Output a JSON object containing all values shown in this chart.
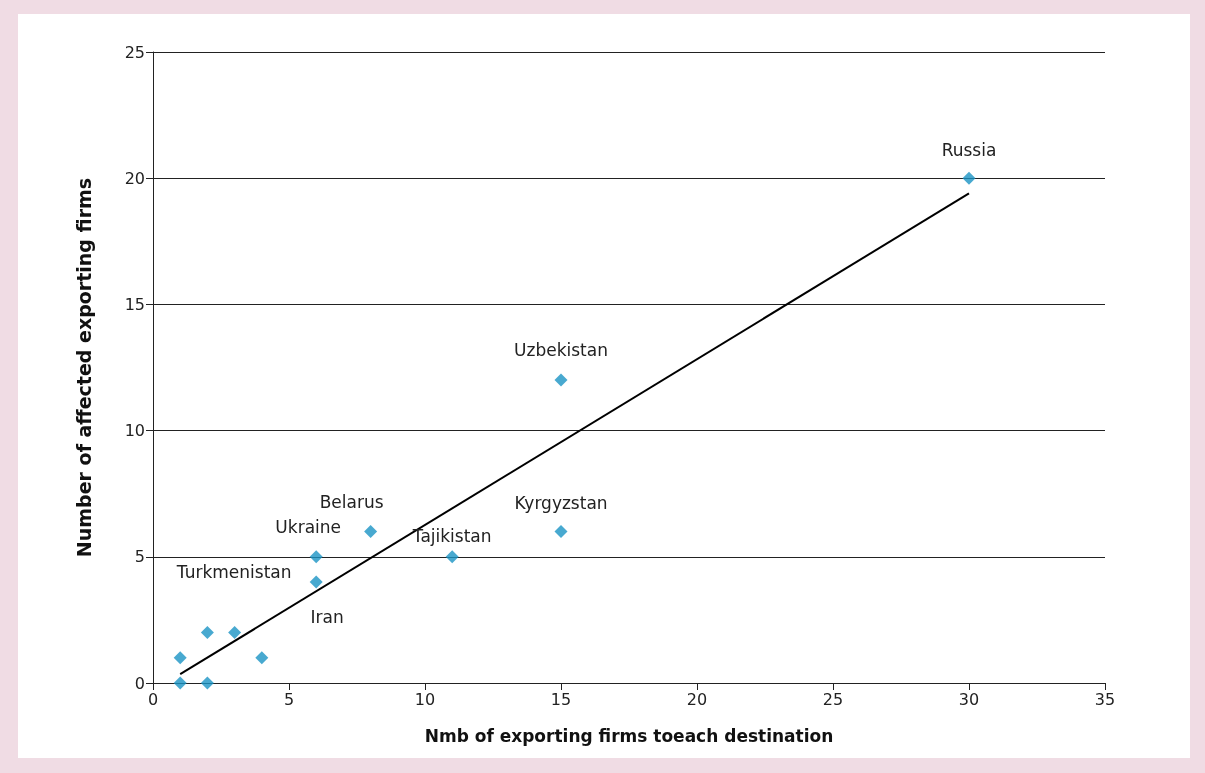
{
  "chart_data": {
    "type": "scatter",
    "xlabel": "Nmb of exporting firms toeach destination",
    "ylabel": "Number of affected exporting firms",
    "xlim": [
      0,
      35
    ],
    "xticks": [
      0,
      5,
      10,
      15,
      20,
      25,
      30,
      35
    ],
    "ylim": [
      0,
      25
    ],
    "yticks": [
      0,
      5,
      10,
      15,
      20,
      25
    ],
    "grid": "y",
    "series": [
      {
        "color": "#1a94c4",
        "marker": "diamond",
        "x": [
          1,
          1,
          2,
          2,
          3,
          4,
          6,
          6,
          8,
          11,
          15,
          15,
          30
        ],
        "values": [
          0,
          1,
          2,
          0,
          2,
          1,
          5,
          4,
          6,
          5,
          6,
          12,
          20
        ]
      },
      {
        "type": "line",
        "color": "#000000",
        "marker": "none",
        "x": [
          1,
          30
        ],
        "values": [
          0.35,
          19.4
        ]
      }
    ],
    "annotations": [
      {
        "text": "Russia",
        "x": 30,
        "y": 20
      },
      {
        "text": "Uzbekistan",
        "x": 15,
        "y": 12
      },
      {
        "text": "Belarus",
        "x": 8,
        "y": 6
      },
      {
        "text": "Ukraine",
        "x": 6,
        "y": 5
      },
      {
        "text": "Turkmenistan",
        "x": 6,
        "y": 5
      },
      {
        "text": "Iran",
        "x": 6,
        "y": 4
      },
      {
        "text": "Tajikistan",
        "x": 11,
        "y": 5
      },
      {
        "text": "Kyrgyzstan",
        "x": 15,
        "y": 6
      }
    ]
  }
}
